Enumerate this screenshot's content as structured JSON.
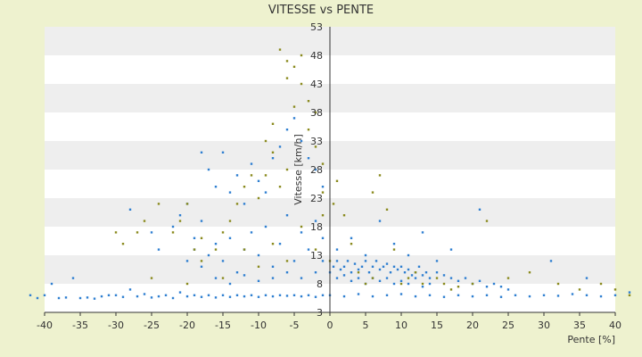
{
  "chart_data": {
    "type": "scatter",
    "title": "VITESSE vs PENTE",
    "xlabel": "Pente [%]",
    "ylabel": "Vitesse [km/h]",
    "xlim": [
      -40,
      40
    ],
    "ylim": [
      3,
      53
    ],
    "x_ticks": [
      "-40",
      "-35",
      "-30",
      "-25",
      "-20",
      "-15",
      "-10",
      "-5",
      "0",
      "5",
      "10",
      "15",
      "20",
      "25",
      "30",
      "35",
      "40"
    ],
    "y_ticks": [
      "3",
      "8",
      "13",
      "18",
      "23",
      "28",
      "33",
      "38",
      "43",
      "48",
      "53"
    ],
    "grid": "horizontal alternating bands",
    "colors": {
      "background": "#eef2cf",
      "band_light": "#ffffff",
      "band_dark": "#eeeeee",
      "series_blue": "#2f7fd1",
      "series_olive": "#8a8a1e",
      "axis": "#333333"
    },
    "series": [
      {
        "color": "#2f7fd1",
        "points": [
          [
            -42,
            6
          ],
          [
            -41,
            5.5
          ],
          [
            -40,
            6
          ],
          [
            -39,
            8
          ],
          [
            -38,
            5.5
          ],
          [
            -37,
            5.6
          ],
          [
            -36,
            9
          ],
          [
            -35,
            5.5
          ],
          [
            -34,
            5.6
          ],
          [
            -33,
            5.4
          ],
          [
            -32,
            5.8
          ],
          [
            -31,
            6
          ],
          [
            -30,
            6
          ],
          [
            -29,
            5.7
          ],
          [
            -28,
            7
          ],
          [
            -27,
            5.8
          ],
          [
            -26,
            6.2
          ],
          [
            -25,
            5.6
          ],
          [
            -24,
            5.8
          ],
          [
            -23,
            6
          ],
          [
            -22,
            5.5
          ],
          [
            -21,
            6.5
          ],
          [
            -20,
            5.8
          ],
          [
            -19,
            6
          ],
          [
            -18,
            5.7
          ],
          [
            -17,
            6
          ],
          [
            -16,
            5.6
          ],
          [
            -15,
            6
          ],
          [
            -14,
            5.7
          ],
          [
            -13,
            6
          ],
          [
            -12,
            5.8
          ],
          [
            -11,
            6
          ],
          [
            -10,
            5.7
          ],
          [
            -9,
            6
          ],
          [
            -8,
            5.8
          ],
          [
            -7,
            6
          ],
          [
            -6,
            5.9
          ],
          [
            -5,
            6
          ],
          [
            -4,
            5.8
          ],
          [
            -3,
            6
          ],
          [
            -2,
            5.7
          ],
          [
            -1,
            6
          ],
          [
            -28,
            21
          ],
          [
            -25,
            17
          ],
          [
            -24,
            14
          ],
          [
            -22,
            18
          ],
          [
            -21,
            20
          ],
          [
            -20,
            22
          ],
          [
            -19,
            16
          ],
          [
            -18,
            19
          ],
          [
            -18,
            31
          ],
          [
            -17,
            28
          ],
          [
            -16,
            25
          ],
          [
            -15,
            31
          ],
          [
            -14,
            24
          ],
          [
            -13,
            27
          ],
          [
            -12,
            22
          ],
          [
            -11,
            29
          ],
          [
            -10,
            26
          ],
          [
            -9,
            24
          ],
          [
            -8,
            30
          ],
          [
            -7,
            32
          ],
          [
            -6,
            35
          ],
          [
            -5,
            37
          ],
          [
            -4,
            33
          ],
          [
            -3,
            30
          ],
          [
            -2,
            28
          ],
          [
            -1,
            25
          ],
          [
            -20,
            12
          ],
          [
            -19,
            14
          ],
          [
            -18,
            11
          ],
          [
            -17,
            13
          ],
          [
            -16,
            15
          ],
          [
            -15,
            12
          ],
          [
            -14,
            16
          ],
          [
            -13,
            10
          ],
          [
            -12,
            14
          ],
          [
            -11,
            17
          ],
          [
            -10,
            13
          ],
          [
            -9,
            18
          ],
          [
            -8,
            11
          ],
          [
            -7,
            15
          ],
          [
            -6,
            20
          ],
          [
            -5,
            12
          ],
          [
            -4,
            17
          ],
          [
            -3,
            14
          ],
          [
            -2,
            19
          ],
          [
            -1,
            16
          ],
          [
            -16,
            9
          ],
          [
            -14,
            8
          ],
          [
            -12,
            9.5
          ],
          [
            -10,
            8.5
          ],
          [
            -8,
            9
          ],
          [
            -6,
            10
          ],
          [
            -4,
            9
          ],
          [
            -2,
            10
          ],
          [
            -1,
            12
          ],
          [
            0,
            10
          ],
          [
            0.5,
            11
          ],
          [
            1,
            12
          ],
          [
            1.5,
            10.5
          ],
          [
            2,
            11
          ],
          [
            2.5,
            12
          ],
          [
            3,
            10
          ],
          [
            3.5,
            11.5
          ],
          [
            4,
            10.5
          ],
          [
            4.5,
            11
          ],
          [
            5,
            12
          ],
          [
            5.5,
            10
          ],
          [
            6,
            11
          ],
          [
            6.5,
            12
          ],
          [
            7,
            10.5
          ],
          [
            7.5,
            11
          ],
          [
            8,
            11.5
          ],
          [
            8.5,
            10
          ],
          [
            9,
            11
          ],
          [
            9.5,
            10.5
          ],
          [
            10,
            11
          ],
          [
            10.5,
            10
          ],
          [
            11,
            10.5
          ],
          [
            11.5,
            9.5
          ],
          [
            12,
            10
          ],
          [
            12.5,
            11
          ],
          [
            13,
            9.5
          ],
          [
            13.5,
            10
          ],
          [
            14,
            9
          ],
          [
            15,
            10
          ],
          [
            16,
            9.5
          ],
          [
            17,
            9
          ],
          [
            18,
            8.5
          ],
          [
            19,
            9
          ],
          [
            20,
            8
          ],
          [
            21,
            8.5
          ],
          [
            22,
            7.5
          ],
          [
            23,
            8
          ],
          [
            24,
            7.5
          ],
          [
            25,
            7
          ],
          [
            1,
            9
          ],
          [
            2,
            9.5
          ],
          [
            3,
            8.5
          ],
          [
            4,
            9
          ],
          [
            5,
            8
          ],
          [
            6,
            9
          ],
          [
            7,
            8.5
          ],
          [
            8,
            9
          ],
          [
            9,
            8
          ],
          [
            10,
            8.5
          ],
          [
            11,
            8
          ],
          [
            12,
            9
          ],
          [
            13,
            7.5
          ],
          [
            14,
            8
          ],
          [
            1,
            14
          ],
          [
            3,
            16
          ],
          [
            5,
            13
          ],
          [
            7,
            19
          ],
          [
            9,
            15
          ],
          [
            11,
            13
          ],
          [
            13,
            17
          ],
          [
            15,
            12
          ],
          [
            17,
            14
          ],
          [
            21,
            21
          ],
          [
            31,
            12
          ],
          [
            36,
            9
          ],
          [
            0,
            6
          ],
          [
            2,
            5.8
          ],
          [
            4,
            6.2
          ],
          [
            6,
            5.8
          ],
          [
            8,
            6
          ],
          [
            10,
            6.2
          ],
          [
            12,
            5.8
          ],
          [
            14,
            6
          ],
          [
            16,
            5.7
          ],
          [
            18,
            6
          ],
          [
            20,
            5.8
          ],
          [
            22,
            6
          ],
          [
            24,
            5.7
          ],
          [
            26,
            6
          ],
          [
            28,
            5.8
          ],
          [
            30,
            6
          ],
          [
            32,
            5.9
          ],
          [
            34,
            6.2
          ],
          [
            36,
            6
          ],
          [
            38,
            5.8
          ],
          [
            40,
            6
          ],
          [
            42,
            6.5
          ]
        ]
      },
      {
        "color": "#8a8a1e",
        "points": [
          [
            -30,
            17
          ],
          [
            -29,
            15
          ],
          [
            -27,
            17
          ],
          [
            -26,
            19
          ],
          [
            -24,
            22
          ],
          [
            -22,
            17
          ],
          [
            -21,
            19
          ],
          [
            -20,
            22
          ],
          [
            -19,
            14
          ],
          [
            -18,
            16
          ],
          [
            -16,
            14
          ],
          [
            -15,
            17
          ],
          [
            -14,
            19
          ],
          [
            -13,
            22
          ],
          [
            -12,
            25
          ],
          [
            -11,
            27
          ],
          [
            -10,
            23
          ],
          [
            -9,
            27
          ],
          [
            -8,
            31
          ],
          [
            -7,
            25
          ],
          [
            -6,
            28
          ],
          [
            -6,
            44
          ],
          [
            -6,
            47
          ],
          [
            -5,
            39
          ],
          [
            -5,
            46
          ],
          [
            -4,
            43
          ],
          [
            -4,
            48
          ],
          [
            -3,
            40
          ],
          [
            -3,
            35
          ],
          [
            -2,
            38
          ],
          [
            -2,
            32
          ],
          [
            -1,
            29
          ],
          [
            -1,
            24
          ],
          [
            -7,
            49
          ],
          [
            -8,
            36
          ],
          [
            -9,
            33
          ],
          [
            -25,
            9
          ],
          [
            -20,
            8
          ],
          [
            -18,
            12
          ],
          [
            -15,
            9
          ],
          [
            -12,
            14
          ],
          [
            -10,
            11
          ],
          [
            -8,
            15
          ],
          [
            -6,
            12
          ],
          [
            -4,
            18
          ],
          [
            -2,
            14
          ],
          [
            -1,
            20
          ],
          [
            0,
            12
          ],
          [
            0.5,
            22
          ],
          [
            1,
            26
          ],
          [
            2,
            20
          ],
          [
            3,
            15
          ],
          [
            4,
            10
          ],
          [
            5,
            8
          ],
          [
            6,
            9
          ],
          [
            6,
            24
          ],
          [
            7,
            27
          ],
          [
            8,
            21
          ],
          [
            9,
            14
          ],
          [
            10,
            8
          ],
          [
            11,
            9
          ],
          [
            12,
            10
          ],
          [
            13,
            8
          ],
          [
            15,
            9
          ],
          [
            16,
            8
          ],
          [
            17,
            7
          ],
          [
            18,
            7.5
          ],
          [
            20,
            8
          ],
          [
            22,
            19
          ],
          [
            25,
            9
          ],
          [
            28,
            10
          ],
          [
            32,
            8
          ],
          [
            35,
            7
          ],
          [
            38,
            8
          ],
          [
            40,
            7
          ],
          [
            42,
            6
          ]
        ]
      }
    ]
  }
}
